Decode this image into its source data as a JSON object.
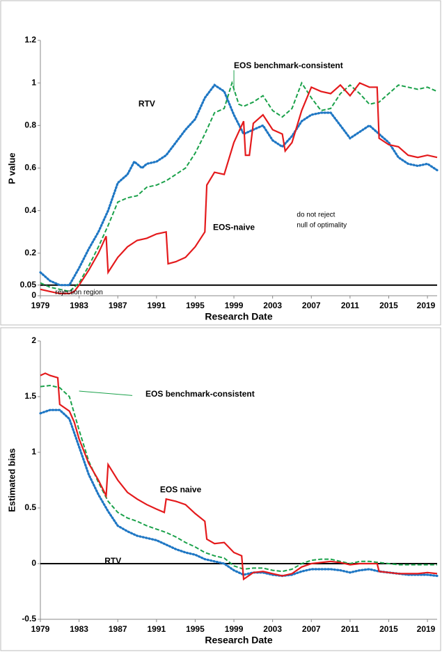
{
  "chart_data": [
    {
      "type": "line",
      "ylabel": "P value",
      "xlabel": "Research Date",
      "xlim": [
        1979,
        2020
      ],
      "xticks": [
        1979,
        1983,
        1987,
        1991,
        1995,
        1999,
        2003,
        2007,
        2011,
        2015,
        2019
      ],
      "ylim": [
        0,
        1.2
      ],
      "yticks": [
        0,
        0.05,
        0.2,
        0.4,
        0.6,
        0.8,
        1,
        1.2
      ],
      "hline": 0.05,
      "annotations": [
        "EOS benchmark-consistent",
        "RTV",
        "EOS-naive",
        "do not reject",
        "null of optimality",
        "rejection region"
      ],
      "series": [
        {
          "name": "RTV",
          "color": "#1f77c4",
          "style": "dotted",
          "x": [
            1979,
            1980,
            1981,
            1982,
            1983,
            1984,
            1985,
            1986,
            1987,
            1988,
            1988.7,
            1989.5,
            1990,
            1991,
            1992,
            1993,
            1994,
            1995,
            1996,
            1997,
            1998,
            1999,
            2000,
            2001,
            2002,
            2003,
            2004,
            2005,
            2006,
            2007,
            2008,
            2009,
            2010,
            2011,
            2012,
            2013,
            2014,
            2015,
            2016,
            2017,
            2018,
            2019,
            2020
          ],
          "values": [
            0.11,
            0.07,
            0.05,
            0.05,
            0.13,
            0.22,
            0.3,
            0.4,
            0.53,
            0.57,
            0.63,
            0.6,
            0.62,
            0.63,
            0.66,
            0.72,
            0.78,
            0.83,
            0.93,
            0.99,
            0.96,
            0.85,
            0.76,
            0.78,
            0.8,
            0.73,
            0.7,
            0.75,
            0.82,
            0.85,
            0.86,
            0.86,
            0.8,
            0.74,
            0.77,
            0.8,
            0.76,
            0.72,
            0.65,
            0.62,
            0.61,
            0.62,
            0.59
          ]
        },
        {
          "name": "EOS benchmark-consistent",
          "color": "#1aa14a",
          "style": "dashed",
          "x": [
            1979,
            1980,
            1981,
            1982,
            1983,
            1984,
            1985,
            1986,
            1987,
            1988,
            1989,
            1990,
            1991,
            1992,
            1993,
            1994,
            1995,
            1996,
            1997,
            1998,
            1998.8,
            1999.5,
            2000,
            2001,
            2002,
            2003,
            2004,
            2005,
            2006,
            2007,
            2008,
            2009,
            2010,
            2011,
            2012,
            2013,
            2014,
            2015,
            2016,
            2017,
            2018,
            2019,
            2020
          ],
          "values": [
            0.06,
            0.04,
            0.03,
            0.02,
            0.06,
            0.14,
            0.23,
            0.33,
            0.44,
            0.46,
            0.47,
            0.51,
            0.52,
            0.54,
            0.57,
            0.6,
            0.67,
            0.76,
            0.86,
            0.88,
            1.0,
            0.9,
            0.89,
            0.91,
            0.94,
            0.87,
            0.84,
            0.88,
            1.0,
            0.93,
            0.87,
            0.88,
            0.95,
            0.99,
            0.95,
            0.9,
            0.91,
            0.95,
            0.99,
            0.98,
            0.97,
            0.98,
            0.96
          ]
        },
        {
          "name": "EOS-naive",
          "color": "#e41a1c",
          "style": "solid",
          "x": [
            1979,
            1980,
            1981,
            1982,
            1982.5,
            1983,
            1984,
            1985,
            1985.8,
            1986,
            1987,
            1988,
            1989,
            1990,
            1991,
            1992,
            1992.2,
            1993,
            1994,
            1995,
            1996,
            1996.2,
            1997,
            1998,
            1999,
            2000,
            2000.2,
            2000.6,
            2001,
            2002,
            2003,
            2004,
            2004.3,
            2005,
            2006,
            2007,
            2008,
            2009,
            2010,
            2011,
            2012,
            2013,
            2013.8,
            2014,
            2015,
            2016,
            2017,
            2018,
            2019,
            2020
          ],
          "values": [
            0.03,
            0.02,
            0.01,
            0.01,
            0.02,
            0.05,
            0.12,
            0.2,
            0.28,
            0.11,
            0.18,
            0.23,
            0.26,
            0.27,
            0.29,
            0.3,
            0.15,
            0.16,
            0.18,
            0.23,
            0.3,
            0.52,
            0.58,
            0.57,
            0.72,
            0.82,
            0.66,
            0.66,
            0.81,
            0.85,
            0.78,
            0.76,
            0.68,
            0.72,
            0.87,
            0.98,
            0.96,
            0.95,
            0.99,
            0.94,
            1.0,
            0.98,
            0.98,
            0.74,
            0.71,
            0.7,
            0.66,
            0.65,
            0.66,
            0.65
          ]
        }
      ]
    },
    {
      "type": "line",
      "ylabel": "Estimated bias",
      "xlabel": "Research Date",
      "xlim": [
        1979,
        2020
      ],
      "xticks": [
        1979,
        1983,
        1987,
        1991,
        1995,
        1999,
        2003,
        2007,
        2011,
        2015,
        2019
      ],
      "ylim": [
        -0.5,
        2
      ],
      "yticks": [
        -0.5,
        0,
        0.5,
        1,
        1.5,
        2
      ],
      "hline": 0,
      "annotations": [
        "EOS benchmark-consistent",
        "EOS naive",
        "RTV"
      ],
      "series": [
        {
          "name": "RTV",
          "color": "#1f77c4",
          "style": "dotted",
          "x": [
            1979,
            1980,
            1981,
            1982,
            1983,
            1984,
            1985,
            1986,
            1987,
            1988,
            1989,
            1990,
            1991,
            1992,
            1993,
            1994,
            1995,
            1996,
            1997,
            1998,
            1999,
            2000,
            2001,
            2002,
            2003,
            2004,
            2005,
            2006,
            2007,
            2008,
            2009,
            2010,
            2011,
            2012,
            2013,
            2014,
            2015,
            2016,
            2017,
            2018,
            2019,
            2020
          ],
          "values": [
            1.35,
            1.38,
            1.38,
            1.3,
            1.05,
            0.8,
            0.62,
            0.47,
            0.34,
            0.29,
            0.25,
            0.23,
            0.21,
            0.17,
            0.13,
            0.1,
            0.08,
            0.04,
            0.02,
            0.0,
            -0.06,
            -0.1,
            -0.08,
            -0.08,
            -0.1,
            -0.11,
            -0.1,
            -0.07,
            -0.05,
            -0.05,
            -0.05,
            -0.06,
            -0.08,
            -0.06,
            -0.05,
            -0.07,
            -0.08,
            -0.09,
            -0.1,
            -0.1,
            -0.1,
            -0.11
          ]
        },
        {
          "name": "EOS benchmark-consistent",
          "color": "#1aa14a",
          "style": "dashed",
          "x": [
            1979,
            1980,
            1981,
            1982,
            1983,
            1984,
            1985,
            1986,
            1987,
            1988,
            1989,
            1990,
            1991,
            1992,
            1993,
            1994,
            1995,
            1996,
            1997,
            1998,
            1999,
            2000,
            2001,
            2002,
            2003,
            2004,
            2005,
            2006,
            2007,
            2008,
            2009,
            2010,
            2011,
            2012,
            2013,
            2014,
            2015,
            2016,
            2017,
            2018,
            2019,
            2020
          ],
          "values": [
            1.59,
            1.6,
            1.58,
            1.5,
            1.2,
            0.92,
            0.73,
            0.56,
            0.46,
            0.41,
            0.38,
            0.34,
            0.31,
            0.28,
            0.24,
            0.19,
            0.15,
            0.1,
            0.07,
            0.05,
            -0.02,
            -0.05,
            -0.04,
            -0.04,
            -0.06,
            -0.07,
            -0.05,
            0.0,
            0.03,
            0.04,
            0.04,
            0.02,
            0.0,
            0.02,
            0.02,
            0.01,
            0.0,
            -0.01,
            -0.01,
            -0.01,
            -0.01,
            -0.01
          ]
        },
        {
          "name": "EOS naive",
          "color": "#e41a1c",
          "style": "solid",
          "x": [
            1979,
            1979.5,
            1980,
            1980.8,
            1981,
            1982,
            1982.5,
            1983,
            1984,
            1985,
            1985.8,
            1986,
            1987,
            1988,
            1989,
            1990,
            1991,
            1991.8,
            1992,
            1993,
            1994,
            1995,
            1996,
            1996.2,
            1997,
            1998,
            1999,
            1999.8,
            2000,
            2001,
            2002,
            2003,
            2004,
            2005,
            2006,
            2007,
            2008,
            2009,
            2010,
            2011,
            2012,
            2013,
            2013.8,
            2014,
            2015,
            2016,
            2017,
            2018,
            2019,
            2020
          ],
          "values": [
            1.69,
            1.71,
            1.69,
            1.67,
            1.43,
            1.37,
            1.27,
            1.12,
            0.9,
            0.75,
            0.61,
            0.89,
            0.75,
            0.64,
            0.58,
            0.53,
            0.49,
            0.46,
            0.58,
            0.56,
            0.53,
            0.45,
            0.38,
            0.22,
            0.18,
            0.19,
            0.1,
            0.07,
            -0.14,
            -0.08,
            -0.07,
            -0.09,
            -0.11,
            -0.09,
            -0.03,
            0.0,
            0.01,
            0.02,
            0.01,
            -0.01,
            0.0,
            0.0,
            0.0,
            -0.07,
            -0.08,
            -0.09,
            -0.09,
            -0.09,
            -0.08,
            -0.09
          ]
        }
      ]
    }
  ]
}
